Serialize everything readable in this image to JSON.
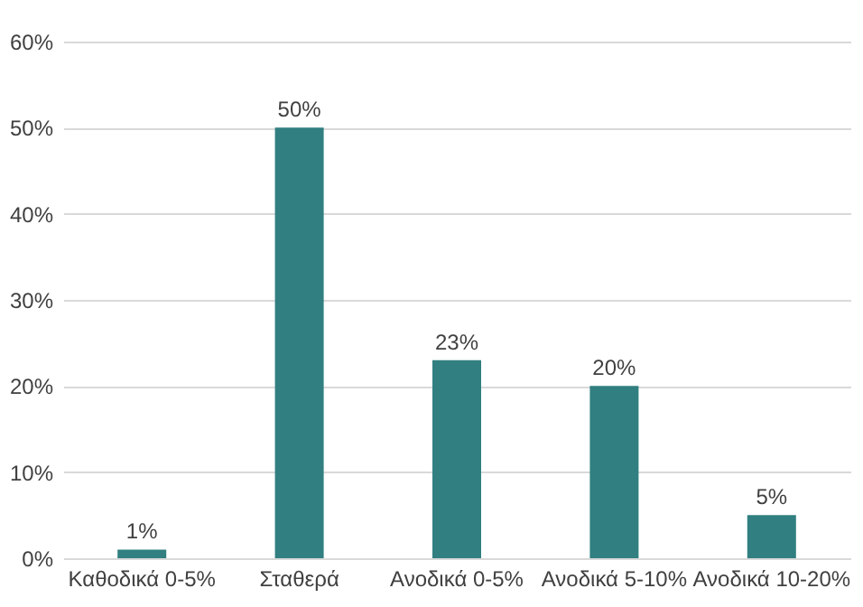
{
  "chart_data": {
    "type": "bar",
    "categories": [
      "Καθοδικά 0-5%",
      "Σταθερά",
      "Ανοδικά 0-5%",
      "Ανοδικά 5-10%",
      "Ανοδικά 10-20%"
    ],
    "values": [
      1,
      50,
      23,
      20,
      5
    ],
    "value_labels": [
      "1%",
      "50%",
      "23%",
      "20%",
      "5%"
    ],
    "color": "#317f80",
    "ylim": [
      0,
      60
    ],
    "yticks": [
      {
        "value": 0,
        "label": "0%"
      },
      {
        "value": 10,
        "label": "10%"
      },
      {
        "value": 20,
        "label": "20%"
      },
      {
        "value": 30,
        "label": "30%"
      },
      {
        "value": 40,
        "label": "40%"
      },
      {
        "value": 50,
        "label": "50%"
      },
      {
        "value": 60,
        "label": "60%"
      }
    ],
    "grid": "y"
  }
}
